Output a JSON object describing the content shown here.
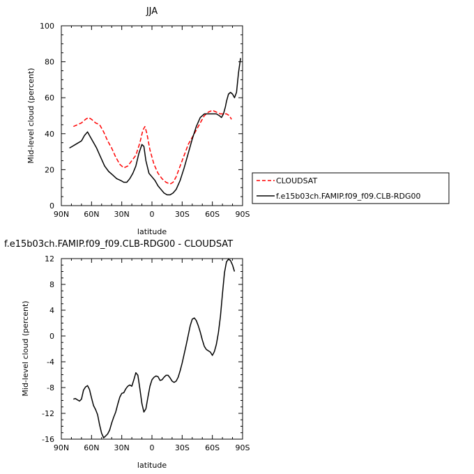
{
  "colors": {
    "cloudsat": "#ff0000",
    "model": "#000000",
    "axis": "#000000"
  },
  "chart_data": [
    {
      "type": "line",
      "title": "JJA",
      "xlabel": "latitude",
      "ylabel": "Mid-level cloud (percent)",
      "xlim": [
        90,
        -90
      ],
      "ylim": [
        0,
        100
      ],
      "x_tick_values": [
        90,
        60,
        30,
        0,
        -30,
        -60,
        -90
      ],
      "x_tick_labels": [
        "90N",
        "60N",
        "30N",
        "0",
        "30S",
        "60S",
        "90S"
      ],
      "y_ticks": [
        0,
        20,
        40,
        60,
        80,
        100
      ],
      "y_tick_labels": [
        "0",
        "20",
        "40",
        "60",
        "80",
        "100"
      ],
      "grid": false,
      "legend_position": "right",
      "series": [
        {
          "name": "CLOUDSAT",
          "style": "dashed",
          "color": "#ff0000",
          "x": [
            78,
            74,
            70,
            66,
            63,
            60,
            56,
            52,
            48,
            44,
            40,
            36,
            32,
            28,
            24,
            20,
            16,
            12,
            9,
            7,
            5,
            2,
            -2,
            -6,
            -10,
            -14,
            -18,
            -21,
            -24,
            -28,
            -32,
            -36,
            -40,
            -44,
            -48,
            -52,
            -56,
            -60,
            -64,
            -68,
            -71,
            -74,
            -77,
            -79
          ],
          "y": [
            44,
            45,
            46,
            48,
            49,
            48,
            46,
            45,
            41,
            36,
            32,
            27,
            23,
            21,
            22,
            25,
            28,
            35,
            42,
            44,
            40,
            31,
            23,
            18,
            15,
            13,
            12,
            13,
            16,
            22,
            28,
            34,
            38,
            42,
            46,
            50,
            52,
            53,
            52,
            51,
            51,
            51,
            50,
            48
          ]
        },
        {
          "name": "f.e15b03ch.FAMIP.f09_f09.CLB-RDG00",
          "style": "solid",
          "color": "#000000",
          "x": [
            82,
            79,
            76,
            73,
            70,
            67,
            64,
            62,
            59,
            55,
            51,
            47,
            43,
            39,
            35,
            31,
            28,
            25,
            22,
            19,
            16,
            13,
            10,
            8,
            6,
            3,
            0,
            -3,
            -6,
            -9,
            -12,
            -15,
            -18,
            -21,
            -24,
            -28,
            -32,
            -36,
            -40,
            -44,
            -48,
            -52,
            -56,
            -60,
            -64,
            -67,
            -69,
            -71,
            -73,
            -74,
            -76,
            -78,
            -80,
            -82,
            -84,
            -86,
            -88
          ],
          "y": [
            32,
            33,
            34,
            35,
            36,
            39,
            41,
            39,
            36,
            32,
            27,
            22,
            19,
            17,
            15,
            14,
            13,
            13,
            15,
            18,
            22,
            29,
            34,
            33,
            25,
            18,
            16,
            14,
            11,
            9,
            7,
            6,
            6,
            7,
            9,
            14,
            21,
            29,
            37,
            44,
            49,
            51,
            51,
            51,
            51,
            50,
            49,
            51,
            55,
            58,
            62,
            63,
            62,
            60,
            63,
            74,
            82
          ]
        }
      ]
    },
    {
      "type": "line",
      "title": "f.e15b03ch.FAMIP.f09_f09.CLB-RDG00 - CLOUDSAT",
      "xlabel": "latitude",
      "ylabel": "Mid-level cloud (percent)",
      "xlim": [
        90,
        -90
      ],
      "ylim": [
        -16,
        12
      ],
      "x_tick_values": [
        90,
        60,
        30,
        0,
        -30,
        -60,
        -90
      ],
      "x_tick_labels": [
        "90N",
        "60N",
        "30N",
        "0",
        "30S",
        "60S",
        "90S"
      ],
      "y_ticks": [
        -16,
        -12,
        -8,
        -4,
        0,
        4,
        8,
        12
      ],
      "y_tick_labels": [
        "-16",
        "-12",
        "-8",
        "-4",
        "0",
        "4",
        "8",
        "12"
      ],
      "grid": false,
      "series": [
        {
          "style": "solid",
          "color": "#000000",
          "x": [
            78,
            76,
            74,
            72,
            70,
            68,
            66,
            64,
            62,
            60,
            58,
            56,
            54,
            52,
            50,
            48,
            46,
            44,
            42,
            40,
            38,
            36,
            34,
            32,
            30,
            28,
            26,
            24,
            22,
            20,
            18,
            16,
            14,
            12,
            10,
            8,
            6,
            4,
            2,
            0,
            -2,
            -4,
            -6,
            -8,
            -10,
            -12,
            -14,
            -16,
            -18,
            -20,
            -22,
            -24,
            -26,
            -28,
            -30,
            -32,
            -34,
            -36,
            -38,
            -40,
            -42,
            -44,
            -46,
            -48,
            -50,
            -52,
            -54,
            -56,
            -58,
            -60,
            -62,
            -64,
            -66,
            -68,
            -70,
            -72,
            -74,
            -76,
            -78,
            -80,
            -82
          ],
          "y": [
            -9.8,
            -9.7,
            -9.9,
            -10.1,
            -9.8,
            -8.4,
            -7.9,
            -7.7,
            -8.3,
            -9.6,
            -10.8,
            -11.4,
            -12.2,
            -13.8,
            -15.1,
            -15.8,
            -15.5,
            -15.2,
            -14.6,
            -13.5,
            -12.6,
            -11.8,
            -10.6,
            -9.5,
            -8.9,
            -8.8,
            -8.2,
            -7.8,
            -7.6,
            -7.8,
            -6.8,
            -5.7,
            -6.1,
            -8.2,
            -10.5,
            -11.8,
            -11.3,
            -9.5,
            -7.8,
            -6.8,
            -6.4,
            -6.2,
            -6.3,
            -6.9,
            -6.8,
            -6.4,
            -6.1,
            -6.1,
            -6.5,
            -7.0,
            -7.2,
            -7.0,
            -6.4,
            -5.4,
            -4.2,
            -2.8,
            -1.4,
            0.1,
            1.6,
            2.6,
            2.8,
            2.4,
            1.6,
            0.6,
            -0.6,
            -1.6,
            -2.1,
            -2.3,
            -2.5,
            -3.0,
            -2.4,
            -1.3,
            0.5,
            3.0,
            6.5,
            9.8,
            11.5,
            11.9,
            11.7,
            11.0,
            10.0
          ]
        }
      ]
    }
  ]
}
